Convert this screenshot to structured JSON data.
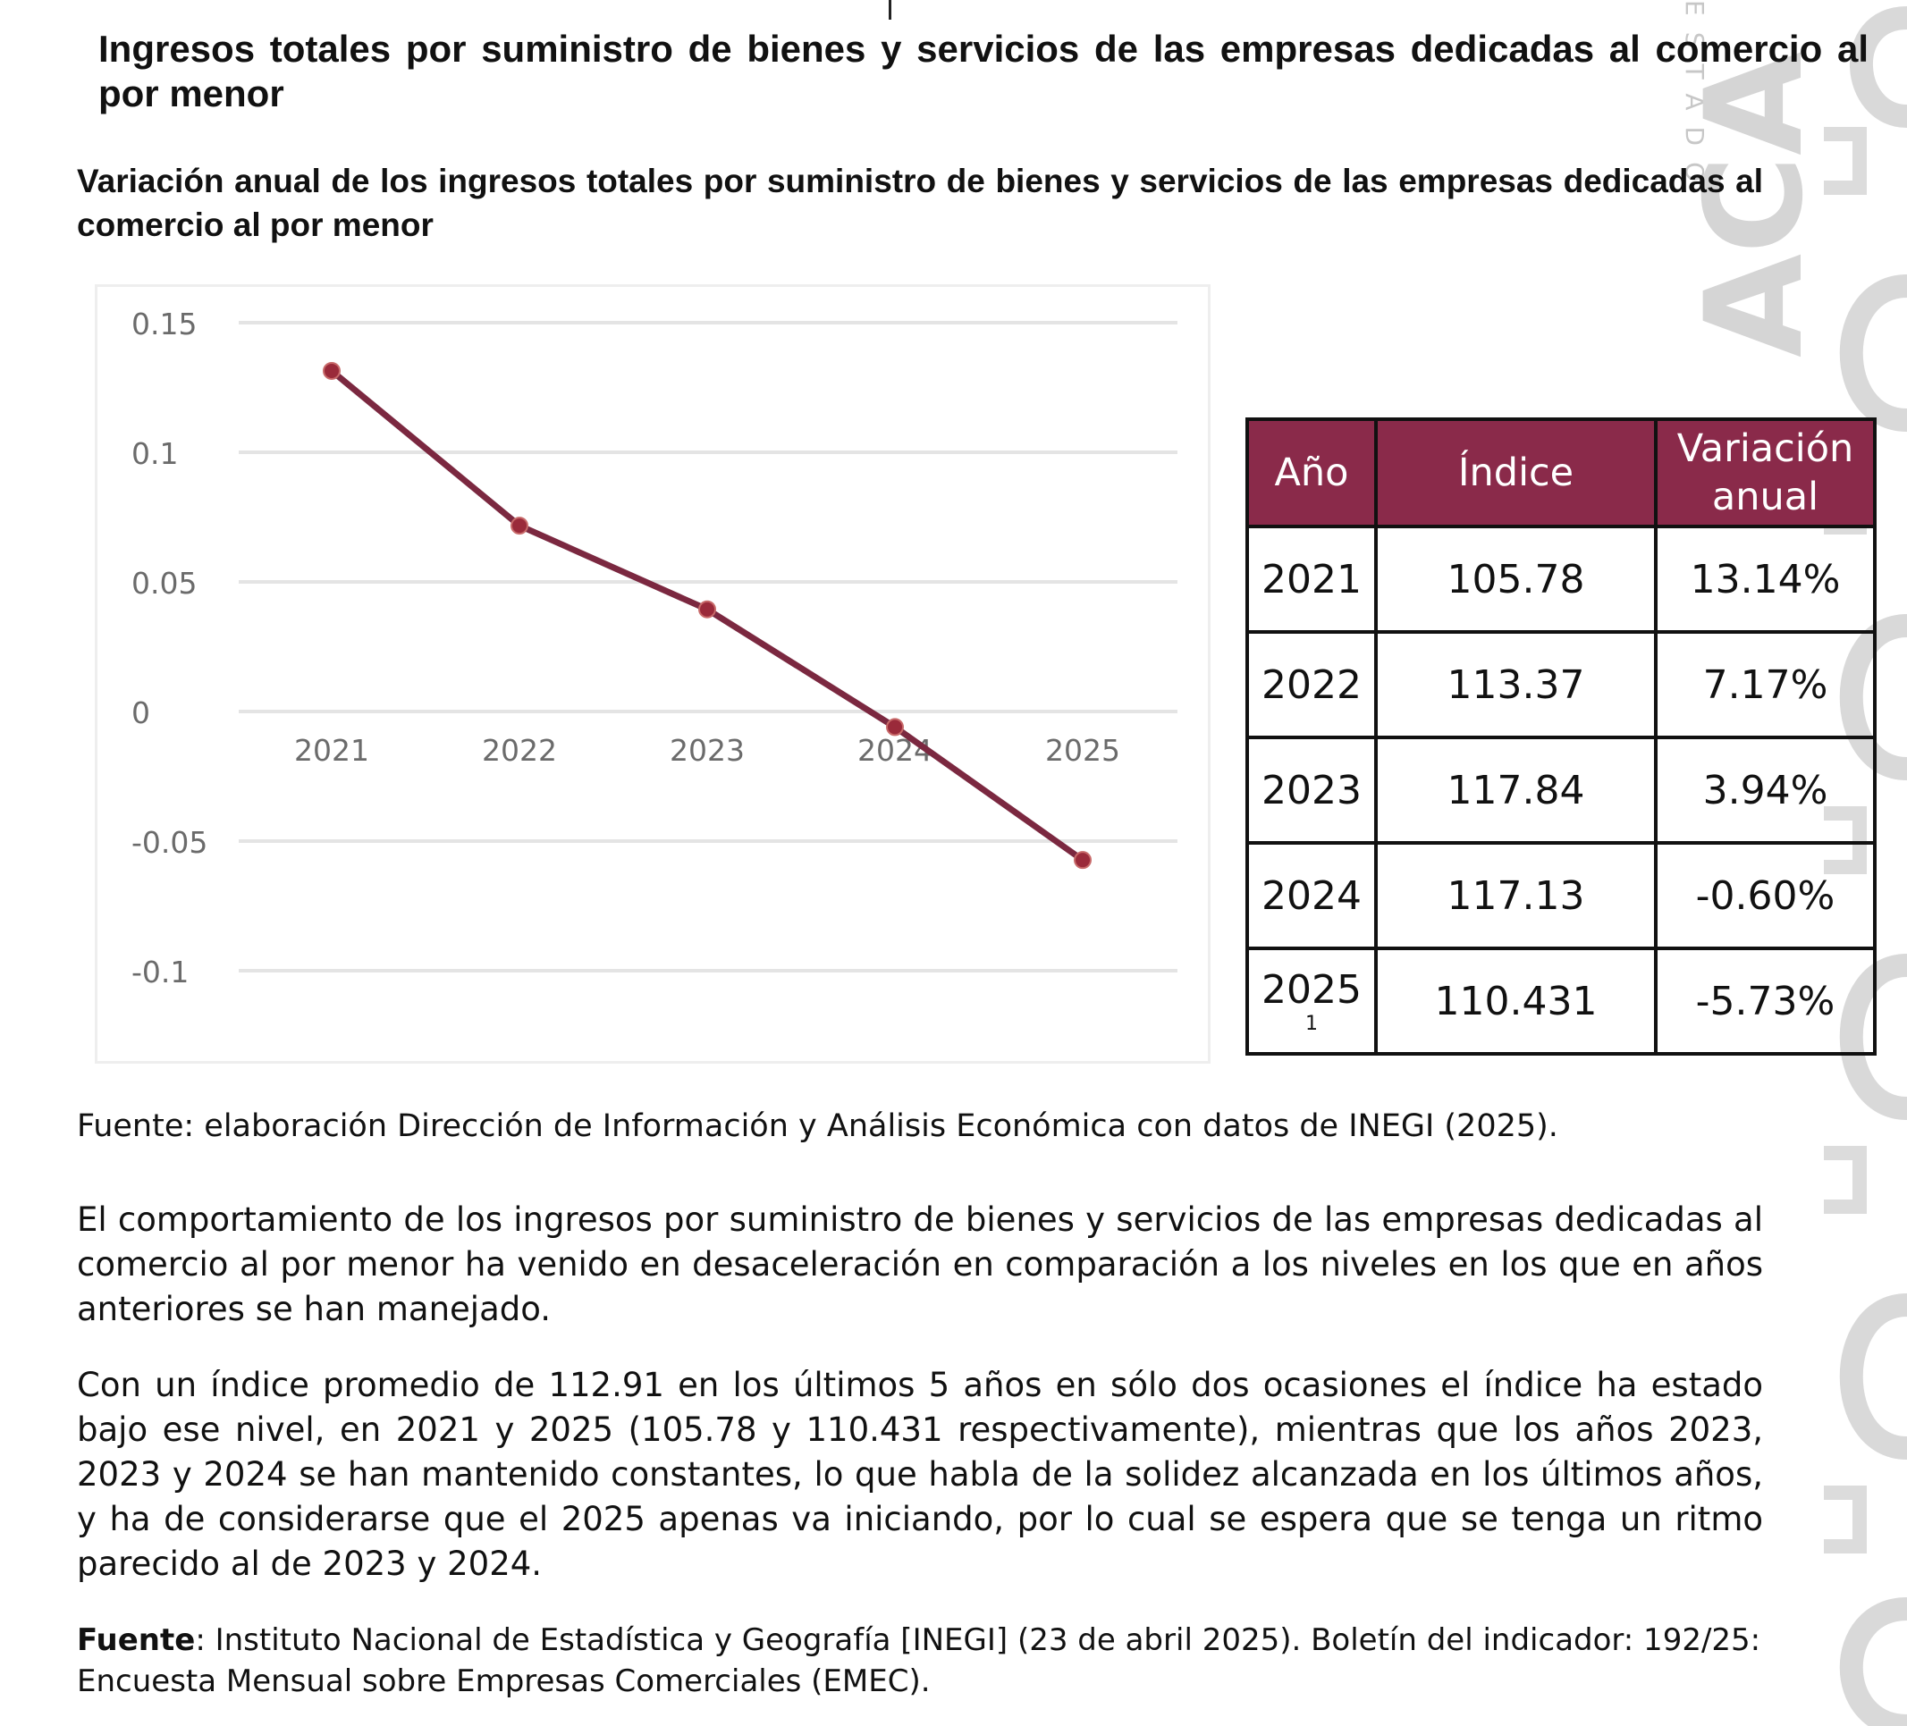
{
  "doc_title": "Ingresos totales por suministro de bienes y servicios de las empresas dedicadas al comercio al por menor",
  "chart_title": "Variación anual de los ingresos totales por suministro de bienes y servicios de las empresas dedicadas al comercio al por menor",
  "chart_data": {
    "type": "line",
    "title": "",
    "xlabel": "",
    "ylabel": "",
    "categories": [
      "2021",
      "2022",
      "2023",
      "2024",
      "2025"
    ],
    "series": [
      {
        "name": "Variación anual",
        "values": [
          0.1314,
          0.0717,
          0.0394,
          -0.006,
          -0.0573
        ]
      }
    ],
    "y_ticks": [
      "0.15",
      "0.1",
      "0.05",
      "0",
      "-0.05",
      "-0.1"
    ],
    "y_tick_values": [
      0.15,
      0.1,
      0.05,
      0,
      -0.05,
      -0.1
    ],
    "ylim": [
      -0.1,
      0.15
    ],
    "grid": true,
    "line_color": "#7b2840",
    "marker_color": "#9a2a3a"
  },
  "table": {
    "headers": {
      "year": "Año",
      "index": "Índice",
      "variation": "Variación anual"
    },
    "rows": [
      {
        "year": "2021",
        "index": "105.78",
        "variation": "13.14%"
      },
      {
        "year": "2022",
        "index": "113.37",
        "variation": "7.17%"
      },
      {
        "year": "2023",
        "index": "117.84",
        "variation": "3.94%"
      },
      {
        "year": "2024",
        "index": "117.13",
        "variation": "-0.60%"
      },
      {
        "year": "2025",
        "year_note": "1",
        "index": "110.431",
        "variation": "-5.73%"
      }
    ],
    "header_color": "#8a2a4a"
  },
  "chart_source": "Fuente: elaboración Dirección de Información y Análisis Económica con datos de INEGI (2025).",
  "paragraphs": [
    "El comportamiento de los ingresos por suministro de bienes y servicios de las empresas dedicadas al comercio al por menor ha venido en desaceleración en comparación a los niveles en los que en años anteriores se han manejado.",
    "Con un índice promedio de 112.91 en los últimos 5 años en sólo dos ocasiones el índice ha estado bajo ese nivel, en 2021 y 2025 (105.78 y 110.431 respectivamente), mientras que los años 2023, 2023 y 2024 se han mantenido constantes, lo que habla de la solidez alcanzada en los últimos años, y ha de considerarse que el 2025 apenas va iniciando, por lo cual se espera que se tenga un ritmo parecido al de 2023 y 2024."
  ],
  "footer": {
    "label": "Fuente",
    "text": ": Instituto Nacional de Estadística y Geografía [INEGI] (23 de abril 2025). Boletín del indicador: 192/25: Encuesta Mensual sobre Empresas Comerciales (EMEC)."
  },
  "watermark": {
    "vertical_text": "ESTADO",
    "big_text": "ACA"
  }
}
